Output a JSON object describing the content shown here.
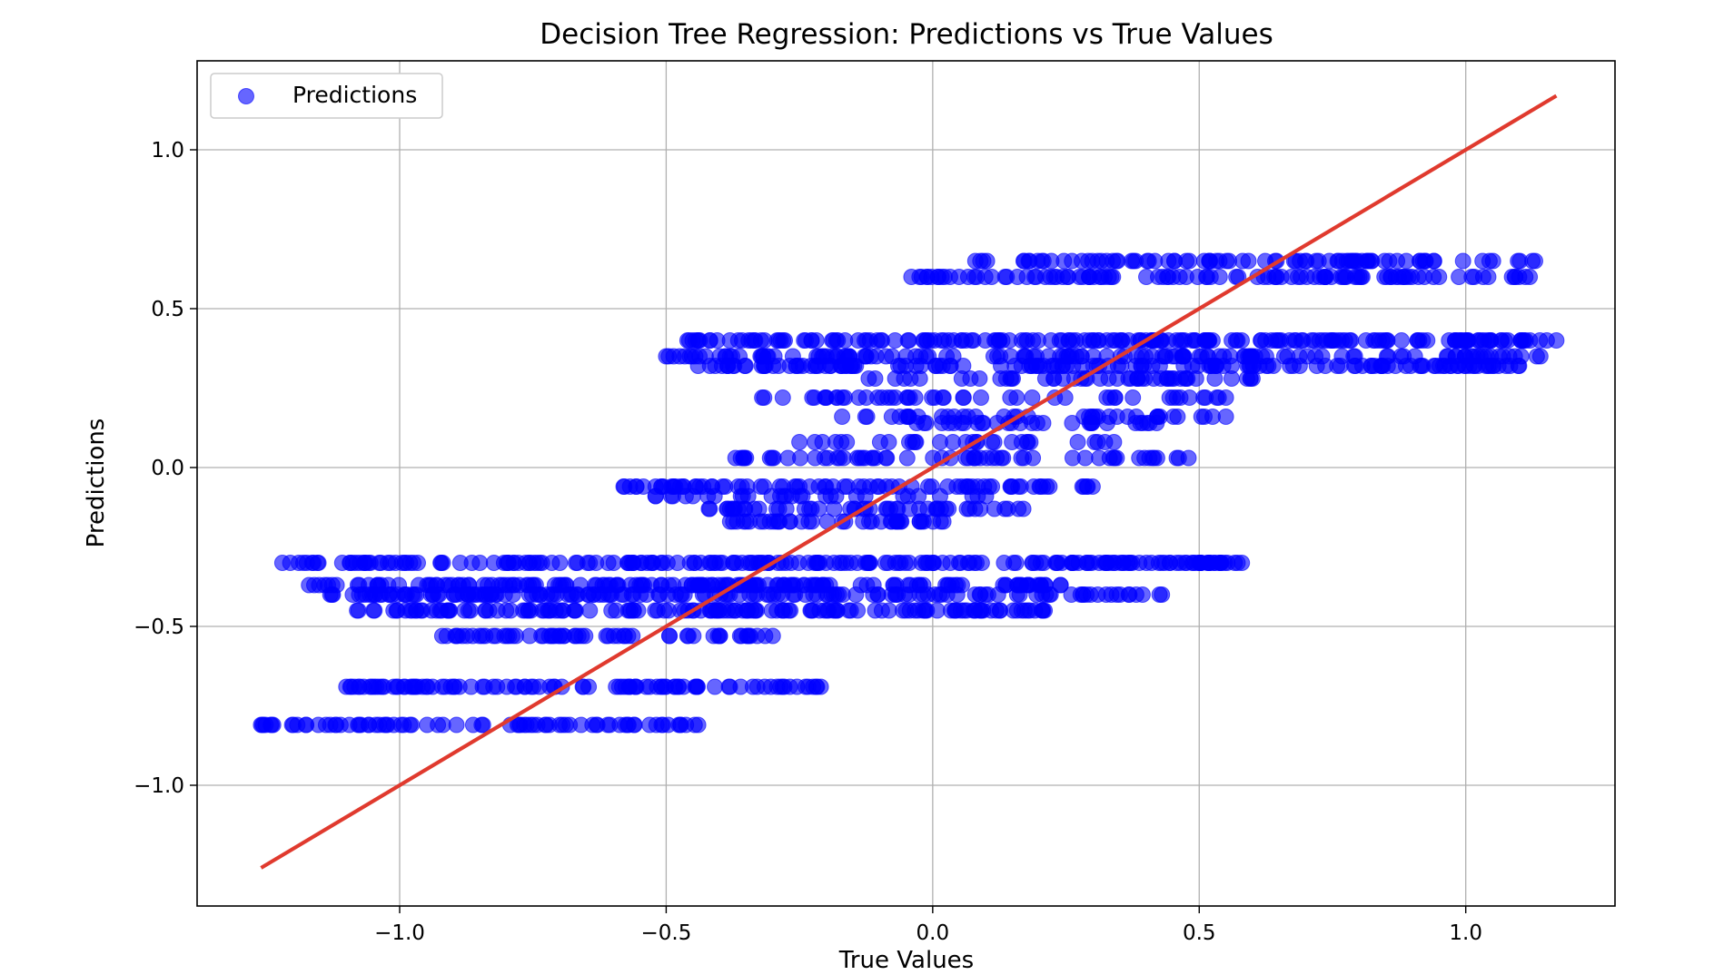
{
  "chart_data": {
    "type": "scatter",
    "title": "Decision Tree Regression: Predictions vs True Values",
    "xlabel": "True Values",
    "ylabel": "Predictions",
    "xlim": [
      -1.38,
      1.28
    ],
    "ylim": [
      -1.38,
      1.28
    ],
    "xticks": [
      -1.0,
      -0.5,
      0.0,
      0.5,
      1.0
    ],
    "xtick_labels": [
      "−1.0",
      "−0.5",
      "0.0",
      "0.5",
      "1.0"
    ],
    "yticks": [
      -1.0,
      -0.5,
      0.0,
      0.5,
      1.0
    ],
    "ytick_labels": [
      "−1.0",
      "−0.5",
      "0.0",
      "0.5",
      "1.0"
    ],
    "grid": true,
    "legend": {
      "position": "top-left",
      "entries": [
        "Predictions"
      ]
    },
    "colors": {
      "points": "#0000ff",
      "reference_line": "#e03a2e",
      "grid": "#b0b0b0"
    },
    "series": [
      {
        "name": "Predictions",
        "kind": "scatter",
        "bands": [
          {
            "y": 0.65,
            "x_range": [
              0.08,
              1.13
            ],
            "n": 90
          },
          {
            "y": 0.6,
            "x_range": [
              -0.04,
              1.12
            ],
            "n": 110
          },
          {
            "y": 0.4,
            "x_range": [
              -0.46,
              1.17
            ],
            "n": 200
          },
          {
            "y": 0.35,
            "x_range": [
              -0.5,
              1.14
            ],
            "n": 140
          },
          {
            "y": 0.32,
            "x_range": [
              -0.44,
              1.1
            ],
            "n": 150
          },
          {
            "y": 0.28,
            "x_range": [
              -0.12,
              0.6
            ],
            "n": 50
          },
          {
            "y": 0.22,
            "x_range": [
              -0.32,
              0.55
            ],
            "n": 50
          },
          {
            "y": 0.16,
            "x_range": [
              -0.17,
              0.55
            ],
            "n": 40
          },
          {
            "y": 0.14,
            "x_range": [
              -0.03,
              0.42
            ],
            "n": 30
          },
          {
            "y": 0.08,
            "x_range": [
              -0.25,
              0.34
            ],
            "n": 30
          },
          {
            "y": 0.03,
            "x_range": [
              -0.37,
              0.48
            ],
            "n": 60
          },
          {
            "y": -0.06,
            "x_range": [
              -0.58,
              0.3
            ],
            "n": 80
          },
          {
            "y": -0.09,
            "x_range": [
              -0.52,
              0.1
            ],
            "n": 30
          },
          {
            "y": -0.13,
            "x_range": [
              -0.42,
              0.17
            ],
            "n": 50
          },
          {
            "y": -0.17,
            "x_range": [
              -0.38,
              0.02
            ],
            "n": 40
          },
          {
            "y": -0.3,
            "x_range": [
              -1.22,
              0.58
            ],
            "n": 220
          },
          {
            "y": -0.37,
            "x_range": [
              -1.17,
              0.24
            ],
            "n": 160
          },
          {
            "y": -0.4,
            "x_range": [
              -1.13,
              0.43
            ],
            "n": 160
          },
          {
            "y": -0.45,
            "x_range": [
              -1.08,
              0.21
            ],
            "n": 150
          },
          {
            "y": -0.53,
            "x_range": [
              -0.92,
              -0.3
            ],
            "n": 60
          },
          {
            "y": -0.69,
            "x_range": [
              -1.1,
              -0.21
            ],
            "n": 100
          },
          {
            "y": -0.81,
            "x_range": [
              -1.26,
              -0.44
            ],
            "n": 80
          }
        ]
      },
      {
        "name": "",
        "kind": "line",
        "x": [
          -1.26,
          1.17
        ],
        "y": [
          -1.26,
          1.17
        ]
      }
    ]
  }
}
